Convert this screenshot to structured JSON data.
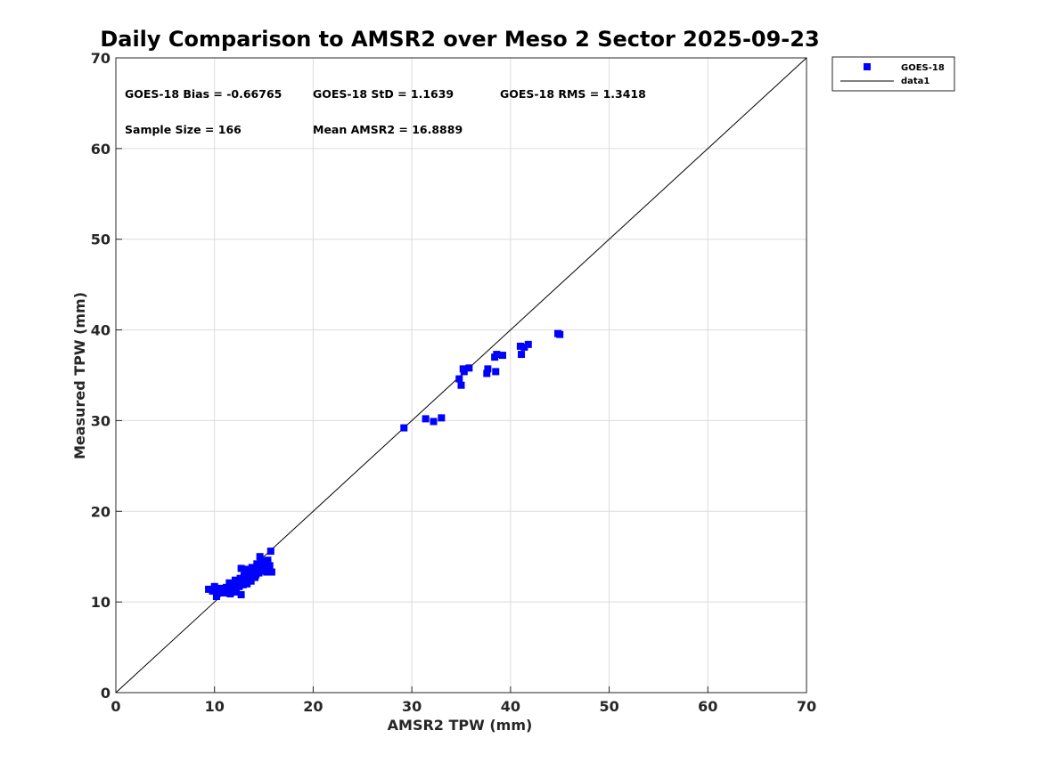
{
  "chart_data": {
    "type": "scatter",
    "title": "Daily Comparison to AMSR2 over Meso 2 Sector 2025-09-23",
    "xlabel": "AMSR2 TPW (mm)",
    "ylabel": "Measured TPW (mm)",
    "xlim": [
      0,
      70
    ],
    "ylim": [
      0,
      70
    ],
    "xticks": [
      0,
      10,
      20,
      30,
      40,
      50,
      60,
      70
    ],
    "yticks": [
      0,
      10,
      20,
      30,
      40,
      50,
      60,
      70
    ],
    "grid": true,
    "legend_position": "outside-top-right",
    "annotations": [
      "GOES-18 Bias = -0.66765",
      "GOES-18 StD = 1.1639",
      "GOES-18 RMS = 1.3418",
      "Sample Size = 166",
      "Mean AMSR2 = 16.8889"
    ],
    "series": [
      {
        "name": "GOES-18",
        "kind": "scatter",
        "marker": "square",
        "color": "#0000ff",
        "points": [
          [
            9.4,
            11.4
          ],
          [
            9.8,
            11.2
          ],
          [
            10.0,
            11.7
          ],
          [
            10.2,
            10.6
          ],
          [
            10.4,
            11.0
          ],
          [
            10.6,
            11.5
          ],
          [
            10.8,
            11.2
          ],
          [
            11.0,
            11.0
          ],
          [
            11.2,
            11.6
          ],
          [
            11.4,
            11.3
          ],
          [
            11.5,
            12.1
          ],
          [
            11.6,
            10.9
          ],
          [
            11.8,
            11.8
          ],
          [
            12.0,
            11.4
          ],
          [
            12.1,
            12.4
          ],
          [
            12.2,
            11.1
          ],
          [
            12.3,
            12.0
          ],
          [
            12.5,
            11.7
          ],
          [
            12.6,
            12.6
          ],
          [
            12.7,
            10.8
          ],
          [
            12.7,
            13.7
          ],
          [
            12.8,
            12.2
          ],
          [
            12.9,
            11.9
          ],
          [
            13.0,
            12.9
          ],
          [
            13.1,
            12.4
          ],
          [
            13.2,
            13.3
          ],
          [
            13.3,
            12.0
          ],
          [
            13.4,
            13.6
          ],
          [
            13.5,
            12.6
          ],
          [
            13.6,
            13.1
          ],
          [
            13.7,
            12.3
          ],
          [
            13.8,
            13.8
          ],
          [
            13.9,
            12.8
          ],
          [
            14.0,
            13.4
          ],
          [
            14.1,
            12.7
          ],
          [
            14.2,
            13.0
          ],
          [
            14.3,
            14.2
          ],
          [
            14.4,
            13.5
          ],
          [
            14.5,
            13.2
          ],
          [
            14.6,
            15.0
          ],
          [
            14.7,
            14.5
          ],
          [
            14.8,
            13.4
          ],
          [
            14.9,
            13.8
          ],
          [
            15.0,
            13.6
          ],
          [
            15.1,
            14.1
          ],
          [
            15.2,
            14.3
          ],
          [
            15.3,
            13.3
          ],
          [
            15.4,
            14.6
          ],
          [
            15.5,
            13.9
          ],
          [
            15.6,
            14.0
          ],
          [
            15.7,
            15.6
          ],
          [
            15.8,
            13.3
          ],
          [
            29.2,
            29.2
          ],
          [
            31.4,
            30.2
          ],
          [
            32.2,
            29.9
          ],
          [
            33.0,
            30.3
          ],
          [
            34.8,
            34.6
          ],
          [
            35.0,
            33.9
          ],
          [
            35.2,
            35.7
          ],
          [
            35.3,
            35.4
          ],
          [
            35.8,
            35.8
          ],
          [
            37.6,
            35.2
          ],
          [
            37.7,
            35.7
          ],
          [
            38.4,
            37.0
          ],
          [
            38.5,
            35.4
          ],
          [
            38.6,
            37.3
          ],
          [
            39.2,
            37.2
          ],
          [
            41.0,
            38.2
          ],
          [
            41.1,
            37.3
          ],
          [
            41.4,
            38.1
          ],
          [
            41.8,
            38.4
          ],
          [
            44.8,
            39.6
          ],
          [
            45.0,
            39.5
          ]
        ]
      },
      {
        "name": "data1",
        "kind": "line",
        "color": "#000000",
        "x": [
          0,
          70
        ],
        "y": [
          0,
          70
        ]
      }
    ]
  }
}
